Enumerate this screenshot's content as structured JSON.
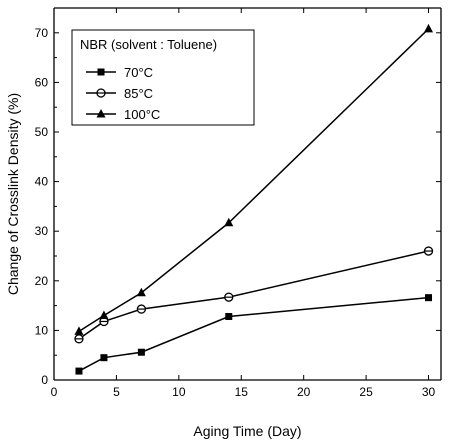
{
  "chart_data": {
    "type": "line",
    "title": "",
    "xlabel": "Aging Time (Day)",
    "ylabel": "Change of Crosslink Density (%)",
    "xlim": [
      0,
      31
    ],
    "ylim": [
      0,
      75
    ],
    "xticks": [
      0,
      5,
      10,
      15,
      20,
      25,
      30
    ],
    "yticks": [
      0,
      10,
      20,
      30,
      40,
      50,
      60,
      70
    ],
    "grid": false,
    "legend": {
      "title": "NBR (solvent : Toluene)",
      "position": "top-left"
    },
    "series": [
      {
        "name": "70°C",
        "marker": "square",
        "x": [
          2,
          4,
          7,
          14,
          30
        ],
        "y": [
          1.8,
          4.5,
          5.6,
          12.8,
          16.6
        ]
      },
      {
        "name": "85°C",
        "marker": "circle",
        "x": [
          2,
          4,
          7,
          14,
          30
        ],
        "y": [
          8.3,
          11.8,
          14.3,
          16.7,
          26.0
        ]
      },
      {
        "name": "100°C",
        "marker": "triangle",
        "x": [
          2,
          4,
          7,
          14,
          30
        ],
        "y": [
          9.8,
          13.0,
          17.6,
          31.7,
          70.8
        ]
      }
    ]
  }
}
